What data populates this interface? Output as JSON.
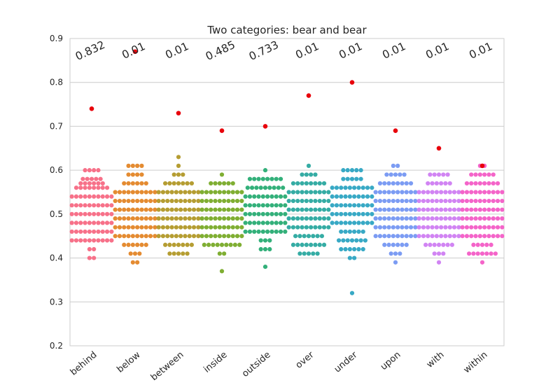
{
  "chart_data": {
    "type": "scatter",
    "subtype": "swarm",
    "title": "Two categories: bear and bear",
    "xlabel": "",
    "ylabel": "",
    "ylim": [
      0.2,
      0.9
    ],
    "yticks": [
      0.2,
      0.3,
      0.4,
      0.5,
      0.6,
      0.7,
      0.8,
      0.9
    ],
    "ytick_labels": [
      "0.2",
      "0.3",
      "0.4",
      "0.5",
      "0.6",
      "0.7",
      "0.8",
      "0.9"
    ],
    "grid": true,
    "highlight_color": "#e8000b",
    "categories": [
      "behind",
      "below",
      "between",
      "inside",
      "outside",
      "over",
      "under",
      "upon",
      "with",
      "within"
    ],
    "colors": [
      "#f77189",
      "#e48b31",
      "#b59d32",
      "#7fae32",
      "#33b07a",
      "#35aca4",
      "#38a9c5",
      "#7c9cf3",
      "#d184f3",
      "#f464c9"
    ],
    "pvalue_labels": [
      "0.832",
      "0.01",
      "0.01",
      "0.485",
      "0.733",
      "0.01",
      "0.01",
      "0.01",
      "0.01",
      "0.01"
    ],
    "highlight_values": [
      0.74,
      0.87,
      0.73,
      0.69,
      0.7,
      0.77,
      0.8,
      0.69,
      0.65,
      0.61
    ],
    "series": [
      {
        "values": [
          0.4,
          0.4,
          0.42,
          0.42,
          0.44,
          0.44,
          0.44,
          0.44,
          0.44,
          0.44,
          0.44,
          0.44,
          0.44,
          0.44,
          0.46,
          0.46,
          0.46,
          0.46,
          0.46,
          0.46,
          0.46,
          0.46,
          0.46,
          0.46,
          0.48,
          0.48,
          0.48,
          0.48,
          0.48,
          0.48,
          0.48,
          0.48,
          0.48,
          0.48,
          0.5,
          0.5,
          0.5,
          0.5,
          0.5,
          0.5,
          0.5,
          0.5,
          0.5,
          0.5,
          0.52,
          0.52,
          0.52,
          0.52,
          0.52,
          0.52,
          0.52,
          0.52,
          0.52,
          0.52,
          0.54,
          0.54,
          0.54,
          0.54,
          0.54,
          0.54,
          0.54,
          0.54,
          0.54,
          0.54,
          0.56,
          0.56,
          0.56,
          0.56,
          0.56,
          0.56,
          0.56,
          0.56,
          0.57,
          0.57,
          0.57,
          0.57,
          0.57,
          0.57,
          0.58,
          0.58,
          0.58,
          0.58,
          0.58,
          0.6,
          0.6,
          0.6,
          0.6
        ]
      },
      {
        "values": [
          0.39,
          0.39,
          0.41,
          0.41,
          0.41,
          0.43,
          0.43,
          0.43,
          0.43,
          0.43,
          0.43,
          0.45,
          0.45,
          0.45,
          0.45,
          0.45,
          0.45,
          0.45,
          0.45,
          0.45,
          0.45,
          0.47,
          0.47,
          0.47,
          0.47,
          0.47,
          0.47,
          0.47,
          0.47,
          0.47,
          0.47,
          0.49,
          0.49,
          0.49,
          0.49,
          0.49,
          0.49,
          0.49,
          0.49,
          0.49,
          0.49,
          0.51,
          0.51,
          0.51,
          0.51,
          0.51,
          0.51,
          0.51,
          0.51,
          0.51,
          0.51,
          0.53,
          0.53,
          0.53,
          0.53,
          0.53,
          0.53,
          0.53,
          0.53,
          0.53,
          0.53,
          0.55,
          0.55,
          0.55,
          0.55,
          0.55,
          0.55,
          0.55,
          0.55,
          0.55,
          0.55,
          0.57,
          0.57,
          0.57,
          0.57,
          0.57,
          0.57,
          0.59,
          0.59,
          0.59,
          0.59,
          0.61,
          0.61,
          0.61,
          0.61
        ]
      },
      {
        "values": [
          0.41,
          0.41,
          0.41,
          0.41,
          0.41,
          0.43,
          0.43,
          0.43,
          0.43,
          0.43,
          0.43,
          0.43,
          0.45,
          0.45,
          0.45,
          0.45,
          0.45,
          0.45,
          0.45,
          0.45,
          0.45,
          0.45,
          0.47,
          0.47,
          0.47,
          0.47,
          0.47,
          0.47,
          0.47,
          0.47,
          0.47,
          0.47,
          0.49,
          0.49,
          0.49,
          0.49,
          0.49,
          0.49,
          0.49,
          0.49,
          0.49,
          0.49,
          0.51,
          0.51,
          0.51,
          0.51,
          0.51,
          0.51,
          0.51,
          0.51,
          0.51,
          0.51,
          0.53,
          0.53,
          0.53,
          0.53,
          0.53,
          0.53,
          0.53,
          0.53,
          0.53,
          0.53,
          0.55,
          0.55,
          0.55,
          0.55,
          0.55,
          0.55,
          0.55,
          0.55,
          0.55,
          0.55,
          0.57,
          0.57,
          0.57,
          0.57,
          0.57,
          0.57,
          0.57,
          0.59,
          0.59,
          0.59,
          0.61,
          0.63
        ]
      },
      {
        "values": [
          0.37,
          0.41,
          0.41,
          0.43,
          0.43,
          0.43,
          0.43,
          0.43,
          0.43,
          0.43,
          0.43,
          0.43,
          0.45,
          0.45,
          0.45,
          0.45,
          0.45,
          0.45,
          0.45,
          0.45,
          0.45,
          0.45,
          0.47,
          0.47,
          0.47,
          0.47,
          0.47,
          0.47,
          0.47,
          0.47,
          0.47,
          0.47,
          0.49,
          0.49,
          0.49,
          0.49,
          0.49,
          0.49,
          0.49,
          0.49,
          0.49,
          0.49,
          0.51,
          0.51,
          0.51,
          0.51,
          0.51,
          0.51,
          0.51,
          0.51,
          0.51,
          0.51,
          0.53,
          0.53,
          0.53,
          0.53,
          0.53,
          0.53,
          0.53,
          0.53,
          0.53,
          0.53,
          0.55,
          0.55,
          0.55,
          0.55,
          0.55,
          0.55,
          0.55,
          0.55,
          0.55,
          0.55,
          0.57,
          0.57,
          0.57,
          0.57,
          0.57,
          0.57,
          0.59
        ]
      },
      {
        "values": [
          0.38,
          0.42,
          0.42,
          0.42,
          0.44,
          0.44,
          0.44,
          0.46,
          0.46,
          0.46,
          0.46,
          0.46,
          0.46,
          0.46,
          0.46,
          0.46,
          0.46,
          0.48,
          0.48,
          0.48,
          0.48,
          0.48,
          0.48,
          0.48,
          0.48,
          0.48,
          0.48,
          0.5,
          0.5,
          0.5,
          0.5,
          0.5,
          0.5,
          0.5,
          0.5,
          0.5,
          0.5,
          0.52,
          0.52,
          0.52,
          0.52,
          0.52,
          0.52,
          0.52,
          0.52,
          0.52,
          0.52,
          0.54,
          0.54,
          0.54,
          0.54,
          0.54,
          0.54,
          0.54,
          0.54,
          0.54,
          0.54,
          0.56,
          0.56,
          0.56,
          0.56,
          0.56,
          0.56,
          0.56,
          0.56,
          0.56,
          0.58,
          0.58,
          0.58,
          0.58,
          0.58,
          0.58,
          0.58,
          0.58,
          0.6
        ]
      },
      {
        "values": [
          0.41,
          0.41,
          0.41,
          0.41,
          0.41,
          0.43,
          0.43,
          0.43,
          0.43,
          0.43,
          0.43,
          0.43,
          0.43,
          0.45,
          0.45,
          0.45,
          0.45,
          0.45,
          0.45,
          0.45,
          0.47,
          0.47,
          0.47,
          0.47,
          0.47,
          0.47,
          0.47,
          0.47,
          0.47,
          0.47,
          0.49,
          0.49,
          0.49,
          0.49,
          0.49,
          0.49,
          0.49,
          0.49,
          0.49,
          0.49,
          0.51,
          0.51,
          0.51,
          0.51,
          0.51,
          0.51,
          0.51,
          0.51,
          0.51,
          0.51,
          0.53,
          0.53,
          0.53,
          0.53,
          0.53,
          0.53,
          0.53,
          0.53,
          0.53,
          0.53,
          0.55,
          0.55,
          0.55,
          0.55,
          0.55,
          0.55,
          0.55,
          0.55,
          0.55,
          0.55,
          0.57,
          0.57,
          0.57,
          0.57,
          0.57,
          0.57,
          0.57,
          0.57,
          0.59,
          0.59,
          0.59,
          0.59,
          0.61
        ]
      },
      {
        "values": [
          0.32,
          0.4,
          0.4,
          0.42,
          0.42,
          0.42,
          0.42,
          0.42,
          0.42,
          0.44,
          0.44,
          0.44,
          0.44,
          0.44,
          0.44,
          0.44,
          0.46,
          0.46,
          0.46,
          0.46,
          0.46,
          0.46,
          0.48,
          0.48,
          0.48,
          0.48,
          0.48,
          0.48,
          0.48,
          0.48,
          0.48,
          0.48,
          0.5,
          0.5,
          0.5,
          0.5,
          0.5,
          0.5,
          0.5,
          0.5,
          0.5,
          0.5,
          0.52,
          0.52,
          0.52,
          0.52,
          0.52,
          0.52,
          0.52,
          0.52,
          0.52,
          0.52,
          0.54,
          0.54,
          0.54,
          0.54,
          0.54,
          0.54,
          0.54,
          0.54,
          0.54,
          0.54,
          0.56,
          0.56,
          0.56,
          0.56,
          0.56,
          0.56,
          0.56,
          0.56,
          0.56,
          0.56,
          0.58,
          0.58,
          0.58,
          0.58,
          0.58,
          0.6,
          0.6,
          0.6,
          0.6,
          0.6
        ]
      },
      {
        "values": [
          0.39,
          0.41,
          0.41,
          0.41,
          0.43,
          0.43,
          0.43,
          0.43,
          0.43,
          0.43,
          0.45,
          0.45,
          0.45,
          0.45,
          0.45,
          0.45,
          0.45,
          0.45,
          0.45,
          0.45,
          0.47,
          0.47,
          0.47,
          0.47,
          0.47,
          0.47,
          0.47,
          0.47,
          0.47,
          0.47,
          0.49,
          0.49,
          0.49,
          0.49,
          0.49,
          0.49,
          0.49,
          0.49,
          0.49,
          0.49,
          0.51,
          0.51,
          0.51,
          0.51,
          0.51,
          0.51,
          0.51,
          0.51,
          0.51,
          0.51,
          0.53,
          0.53,
          0.53,
          0.53,
          0.53,
          0.53,
          0.53,
          0.53,
          0.53,
          0.53,
          0.55,
          0.55,
          0.55,
          0.55,
          0.55,
          0.55,
          0.55,
          0.55,
          0.55,
          0.55,
          0.57,
          0.57,
          0.57,
          0.57,
          0.57,
          0.57,
          0.57,
          0.57,
          0.59,
          0.59,
          0.59,
          0.59,
          0.59,
          0.61,
          0.61
        ]
      },
      {
        "values": [
          0.39,
          0.41,
          0.41,
          0.41,
          0.43,
          0.43,
          0.43,
          0.43,
          0.43,
          0.43,
          0.43,
          0.45,
          0.45,
          0.45,
          0.45,
          0.45,
          0.45,
          0.45,
          0.45,
          0.45,
          0.45,
          0.47,
          0.47,
          0.47,
          0.47,
          0.47,
          0.47,
          0.47,
          0.47,
          0.47,
          0.47,
          0.49,
          0.49,
          0.49,
          0.49,
          0.49,
          0.49,
          0.49,
          0.49,
          0.49,
          0.49,
          0.51,
          0.51,
          0.51,
          0.51,
          0.51,
          0.51,
          0.51,
          0.51,
          0.51,
          0.51,
          0.53,
          0.53,
          0.53,
          0.53,
          0.53,
          0.53,
          0.53,
          0.53,
          0.53,
          0.53,
          0.55,
          0.55,
          0.55,
          0.55,
          0.55,
          0.55,
          0.55,
          0.55,
          0.55,
          0.55,
          0.57,
          0.57,
          0.57,
          0.57,
          0.57,
          0.57,
          0.59,
          0.59,
          0.59,
          0.59,
          0.59
        ]
      },
      {
        "values": [
          0.39,
          0.41,
          0.41,
          0.41,
          0.41,
          0.41,
          0.41,
          0.41,
          0.43,
          0.43,
          0.43,
          0.43,
          0.43,
          0.45,
          0.45,
          0.45,
          0.45,
          0.45,
          0.45,
          0.45,
          0.45,
          0.45,
          0.45,
          0.47,
          0.47,
          0.47,
          0.47,
          0.47,
          0.47,
          0.47,
          0.47,
          0.47,
          0.47,
          0.49,
          0.49,
          0.49,
          0.49,
          0.49,
          0.49,
          0.49,
          0.49,
          0.49,
          0.49,
          0.51,
          0.51,
          0.51,
          0.51,
          0.51,
          0.51,
          0.51,
          0.51,
          0.51,
          0.51,
          0.53,
          0.53,
          0.53,
          0.53,
          0.53,
          0.53,
          0.53,
          0.53,
          0.53,
          0.53,
          0.55,
          0.55,
          0.55,
          0.55,
          0.55,
          0.55,
          0.55,
          0.55,
          0.55,
          0.55,
          0.57,
          0.57,
          0.57,
          0.57,
          0.57,
          0.57,
          0.57,
          0.57,
          0.59,
          0.59,
          0.59,
          0.59,
          0.59,
          0.59,
          0.61,
          0.61
        ]
      }
    ]
  }
}
